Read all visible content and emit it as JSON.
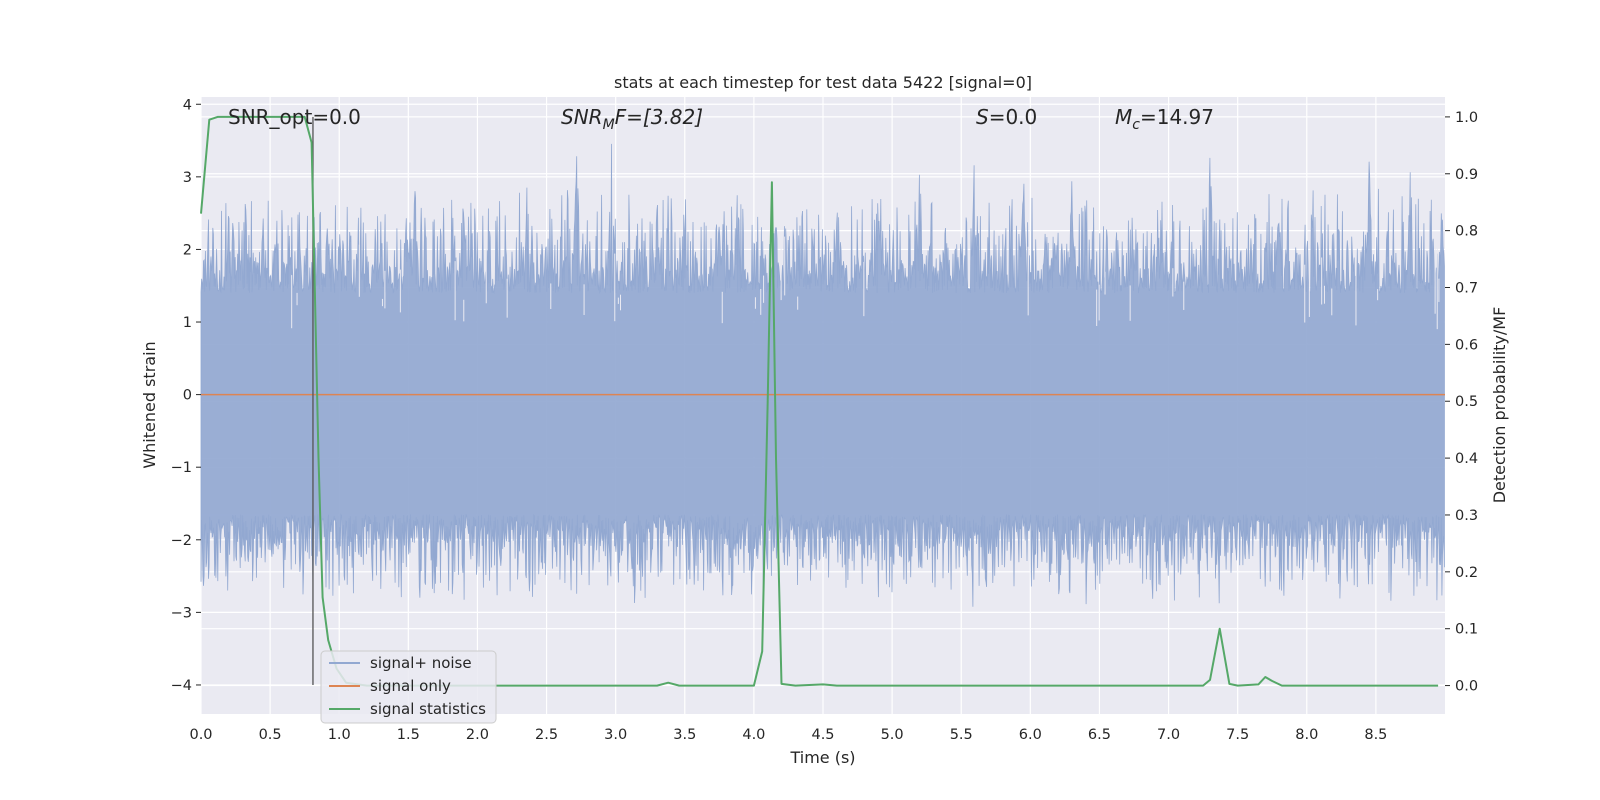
{
  "chart_data": {
    "type": "line",
    "title": "stats at each timestep for test data 5422 [signal=0]",
    "xlabel": "Time (s)",
    "ylabel": "Whitened strain",
    "y2label": "Detection probability/MF",
    "xlim": [
      0.0,
      9.0
    ],
    "ylim": [
      -4.4,
      4.1
    ],
    "y2lim": [
      -0.05,
      1.035
    ],
    "xticks": [
      "0.0",
      "0.5",
      "1.0",
      "1.5",
      "2.0",
      "2.5",
      "3.0",
      "3.5",
      "4.0",
      "4.5",
      "5.0",
      "5.5",
      "6.0",
      "6.5",
      "7.0",
      "7.5",
      "8.0",
      "8.5"
    ],
    "xtick_values": [
      0.0,
      0.5,
      1.0,
      1.5,
      2.0,
      2.5,
      3.0,
      3.5,
      4.0,
      4.5,
      5.0,
      5.5,
      6.0,
      6.5,
      7.0,
      7.5,
      8.0,
      8.5
    ],
    "yticks": [
      "4",
      "3",
      "2",
      "1",
      "0",
      "−1",
      "−2",
      "−3",
      "−4"
    ],
    "ytick_values": [
      4,
      3,
      2,
      1,
      0,
      -1,
      -2,
      -3,
      -4
    ],
    "y2ticks": [
      "1.0",
      "0.9",
      "0.8",
      "0.7",
      "0.6",
      "0.5",
      "0.4",
      "0.3",
      "0.2",
      "0.1",
      "0.0"
    ],
    "y2tick_values": [
      1.0,
      0.9,
      0.8,
      0.7,
      0.6,
      0.5,
      0.4,
      0.3,
      0.2,
      0.1,
      0.0
    ],
    "grid": true,
    "legend_position": "lower-left",
    "annotations": {
      "snr_opt": "SNR_opt=0.0",
      "snr_mf_main": "SNR",
      "snr_mf_sub": "M",
      "snr_mf_rest": "F=[3.82]",
      "s_main": "S",
      "s_rest": "=0.0",
      "mc_main": "M",
      "mc_sub": "c",
      "mc_rest": "=14.97"
    },
    "vertical_marker_x": 0.81,
    "noise_envelope": {
      "core_high": 1.4,
      "core_low": -1.65,
      "peaks_high": [
        [
          0.05,
          2.1
        ],
        [
          0.2,
          2.6
        ],
        [
          0.32,
          3.05
        ],
        [
          0.45,
          2.5
        ],
        [
          0.55,
          2.55
        ],
        [
          0.7,
          2.3
        ],
        [
          1.08,
          2.3
        ],
        [
          1.55,
          3.2
        ],
        [
          1.9,
          2.9
        ],
        [
          2.2,
          2.5
        ],
        [
          2.72,
          3.75
        ],
        [
          2.97,
          3.55
        ],
        [
          3.3,
          2.9
        ],
        [
          3.75,
          2.6
        ],
        [
          4.15,
          2.75
        ],
        [
          4.9,
          2.7
        ],
        [
          5.2,
          3.3
        ],
        [
          5.6,
          3.7
        ],
        [
          5.95,
          3.2
        ],
        [
          6.3,
          3.1
        ],
        [
          6.95,
          2.5
        ],
        [
          7.3,
          3.55
        ],
        [
          7.8,
          2.7
        ],
        [
          8.45,
          3.45
        ],
        [
          8.75,
          3.2
        ],
        [
          8.98,
          2.7
        ]
      ],
      "peaks_low": [
        [
          0.05,
          -2.5
        ],
        [
          0.15,
          -3.0
        ],
        [
          0.45,
          -3.6
        ],
        [
          0.75,
          -3.2
        ],
        [
          1.25,
          -3.5
        ],
        [
          1.7,
          -3.0
        ],
        [
          1.98,
          -3.2
        ],
        [
          2.3,
          -3.7
        ],
        [
          2.75,
          -3.2
        ],
        [
          3.3,
          -3.0
        ],
        [
          3.75,
          -3.0
        ],
        [
          4.5,
          -3.1
        ],
        [
          5.2,
          -3.0
        ],
        [
          5.6,
          -3.35
        ],
        [
          6.35,
          -3.3
        ],
        [
          6.75,
          -2.8
        ],
        [
          7.03,
          -4.0
        ],
        [
          7.5,
          -3.0
        ],
        [
          7.95,
          -3.0
        ],
        [
          8.25,
          -3.1
        ],
        [
          8.55,
          -3.1
        ],
        [
          8.88,
          -3.9
        ]
      ]
    },
    "series": [
      {
        "name": "signal+ noise",
        "color": "#92a8d1",
        "axis": "left",
        "style": "dense-noise"
      },
      {
        "name": "signal only",
        "color": "#dd8452",
        "axis": "left",
        "x": [
          0.0,
          9.0
        ],
        "y": [
          0.0,
          0.0
        ]
      },
      {
        "name": "signal statistics",
        "color": "#55a868",
        "axis": "right",
        "x": [
          0.0,
          0.06,
          0.12,
          0.3,
          0.5,
          0.6,
          0.7,
          0.75,
          0.8,
          0.85,
          0.88,
          0.92,
          0.98,
          1.05,
          1.2,
          2.0,
          3.0,
          3.3,
          3.38,
          3.46,
          3.6,
          4.0,
          4.06,
          4.1,
          4.13,
          4.16,
          4.2,
          4.3,
          4.5,
          4.6,
          5.0,
          6.0,
          7.0,
          7.25,
          7.3,
          7.37,
          7.44,
          7.5,
          7.65,
          7.7,
          7.75,
          7.82,
          8.0,
          8.5,
          8.95
        ],
        "y": [
          0.83,
          0.995,
          1.0,
          1.0,
          1.0,
          1.0,
          1.0,
          1.0,
          0.955,
          0.4,
          0.155,
          0.08,
          0.03,
          0.005,
          0.0,
          0.0,
          0.0,
          0.0,
          0.005,
          0.0,
          0.0,
          0.0,
          0.06,
          0.5,
          0.885,
          0.4,
          0.003,
          0.0,
          0.002,
          0.0,
          0.0,
          0.0,
          0.0,
          0.0,
          0.01,
          0.1,
          0.003,
          0.0,
          0.002,
          0.015,
          0.008,
          0.0,
          0.0,
          0.0,
          0.0
        ]
      }
    ]
  }
}
